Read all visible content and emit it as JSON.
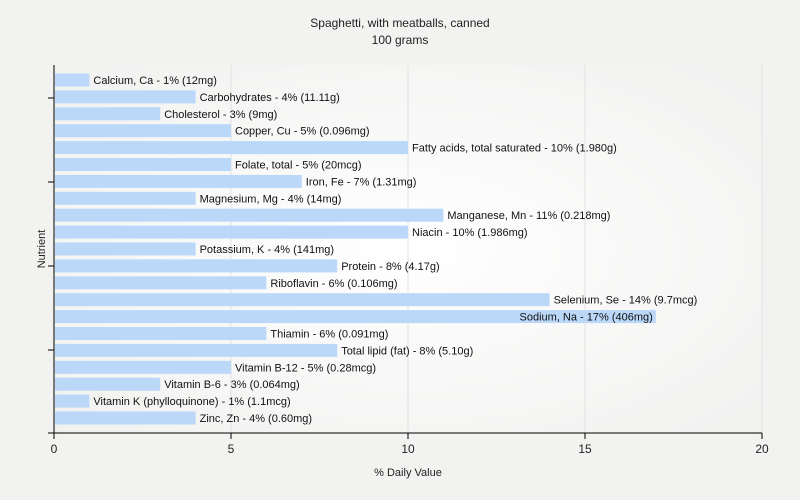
{
  "chart_data": {
    "type": "bar",
    "orientation": "horizontal",
    "title": "Spaghetti, with meatballs, canned",
    "subtitle": "100 grams",
    "xlabel": "% Daily Value",
    "ylabel": "Nutrient",
    "xlim": [
      0,
      20
    ],
    "xticks": [
      0,
      5,
      10,
      15,
      20
    ],
    "grid": true,
    "bar_color": "#bcd8f9",
    "categories": [
      "Calcium, Ca",
      "Carbohydrates",
      "Cholesterol",
      "Copper, Cu",
      "Fatty acids, total saturated",
      "Folate, total",
      "Iron, Fe",
      "Magnesium, Mg",
      "Manganese, Mn",
      "Niacin",
      "Potassium, K",
      "Protein",
      "Riboflavin",
      "Selenium, Se",
      "Sodium, Na",
      "Thiamin",
      "Total lipid (fat)",
      "Vitamin B-12",
      "Vitamin B-6",
      "Vitamin K (phylloquinone)",
      "Zinc, Zn"
    ],
    "values": [
      1,
      4,
      3,
      5,
      10,
      5,
      7,
      4,
      11,
      10,
      4,
      8,
      6,
      14,
      17,
      6,
      8,
      5,
      3,
      1,
      4
    ],
    "labels": [
      "Calcium, Ca - 1% (12mg)",
      "Carbohydrates - 4% (11.11g)",
      "Cholesterol - 3% (9mg)",
      "Copper, Cu - 5% (0.096mg)",
      "Fatty acids, total saturated - 10% (1.980g)",
      "Folate, total - 5% (20mcg)",
      "Iron, Fe - 7% (1.31mg)",
      "Magnesium, Mg - 4% (14mg)",
      "Manganese, Mn - 11% (0.218mg)",
      "Niacin - 10% (1.986mg)",
      "Potassium, K - 4% (141mg)",
      "Protein - 8% (4.17g)",
      "Riboflavin - 6% (0.106mg)",
      "Selenium, Se - 14% (9.7mcg)",
      "Sodium, Na - 17% (406mg)",
      "Thiamin - 6% (0.091mg)",
      "Total lipid (fat) - 8% (5.10g)",
      "Vitamin B-12 - 5% (0.28mcg)",
      "Vitamin B-6 - 3% (0.064mg)",
      "Vitamin K (phylloquinone) - 1% (1.1mcg)",
      "Zinc, Zn - 4% (0.60mg)"
    ]
  }
}
